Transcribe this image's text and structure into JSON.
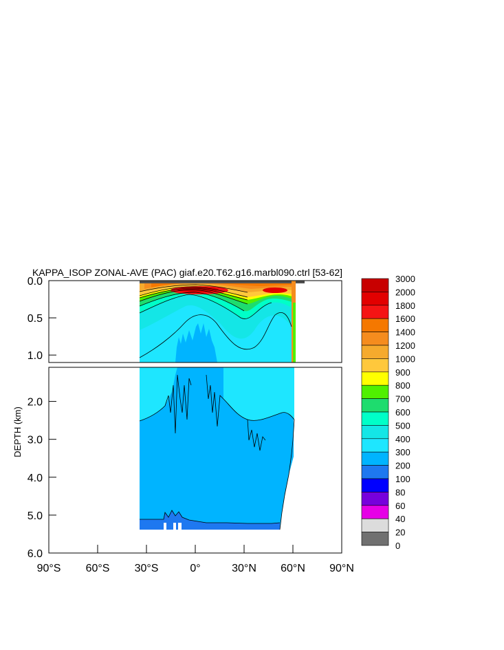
{
  "chart_data": {
    "type": "heatmap",
    "title": "KAPPA_ISOP ZONAL-AVE (PAC) giaf.e20.T62.g16.marbl090.ctrl [53-62]",
    "ylabel": "DEPTH (km)",
    "xlabel": "",
    "xlim": [
      "90°S",
      "90°N"
    ],
    "ylim": [
      0.0,
      6.0
    ],
    "y_reversed": true,
    "x_ticks": [
      {
        "label": "90°S",
        "value": -90
      },
      {
        "label": "60°S",
        "value": -60
      },
      {
        "label": "30°S",
        "value": -30
      },
      {
        "label": "0°",
        "value": 0
      },
      {
        "label": "30°N",
        "value": 30
      },
      {
        "label": "60°N",
        "value": 60
      },
      {
        "label": "90°N",
        "value": 90
      }
    ],
    "y_ticks_upper": [
      {
        "label": "0.0",
        "value": 0.0
      },
      {
        "label": "0.5",
        "value": 0.5
      },
      {
        "label": "1.0",
        "value": 1.0
      }
    ],
    "y_ticks_lower": [
      {
        "label": "2.0",
        "value": 2.0
      },
      {
        "label": "3.0",
        "value": 3.0
      },
      {
        "label": "4.0",
        "value": 4.0
      },
      {
        "label": "5.0",
        "value": 5.0
      },
      {
        "label": "6.0",
        "value": 6.0
      }
    ],
    "colorbar": {
      "levels": [
        "3000",
        "2000",
        "1800",
        "1600",
        "1400",
        "1200",
        "1000",
        "900",
        "800",
        "700",
        "600",
        "500",
        "400",
        "300",
        "200",
        "100",
        "80",
        "60",
        "40",
        "20",
        "0"
      ],
      "colors": [
        "#c80000",
        "#e20000",
        "#f51414",
        "#f57800",
        "#f58c1e",
        "#f5aa2d",
        "#ffc83c",
        "#ffff00",
        "#50f000",
        "#1edc6e",
        "#00ffc8",
        "#14e6e6",
        "#1ee6ff",
        "#00b4ff",
        "#1e78f0",
        "#0000ff",
        "#7800dc",
        "#e600e6",
        "#dcdcdc",
        "#707070"
      ]
    },
    "data_extent": {
      "lat_min": -35,
      "lat_max": 62,
      "depth_max_km": 5.4
    }
  }
}
